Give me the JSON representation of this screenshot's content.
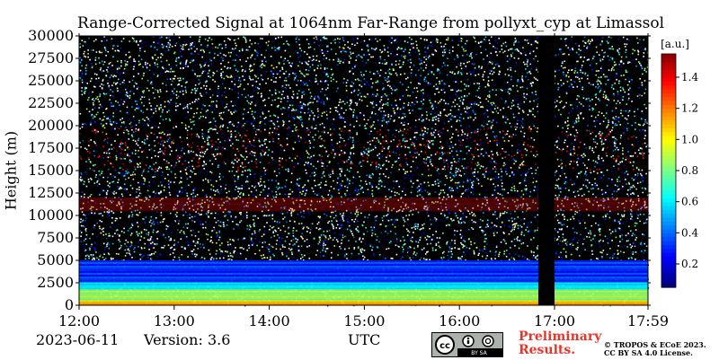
{
  "chart_data": {
    "type": "heatmap",
    "title": "Range-Corrected Signal at 1064nm Far-Range from pollyxt_cyp at Limassol",
    "xlabel": "UTC",
    "ylabel": "Height (m)",
    "x_ticks": [
      "12:00",
      "13:00",
      "14:00",
      "15:00",
      "16:00",
      "17:00",
      "17:59"
    ],
    "x_tick_hours": [
      12.0,
      13.0,
      14.0,
      15.0,
      16.0,
      17.0,
      17.983
    ],
    "xlim_hours": [
      12.0,
      17.983
    ],
    "y_ticks": [
      0,
      2500,
      5000,
      7500,
      10000,
      12500,
      15000,
      17500,
      20000,
      22500,
      25000,
      27500,
      30000
    ],
    "ylim": [
      0,
      30000
    ],
    "colorbar": {
      "unit": "[a.u.]",
      "ticks": [
        0.2,
        0.4,
        0.6,
        0.8,
        1.0,
        1.2,
        1.4
      ],
      "range": [
        0.05,
        1.55
      ],
      "colormap": "jet"
    },
    "no_data_interval_hours": [
      16.83,
      17.0
    ],
    "layers": [
      {
        "height_range_m": [
          0,
          600
        ],
        "signal": 1.1
      },
      {
        "height_range_m": [
          600,
          1800
        ],
        "signal": 0.85
      },
      {
        "height_range_m": [
          1800,
          2600
        ],
        "signal": 0.55
      },
      {
        "height_range_m": [
          2600,
          5000
        ],
        "signal": 0.3
      },
      {
        "height_range_m": [
          10500,
          12000
        ],
        "signal": 1.4
      }
    ]
  },
  "footer": {
    "date": "2023-06-11",
    "version": "Version: 3.6",
    "preliminary_line1": "Preliminary",
    "preliminary_line2": "Results.",
    "copyright_line1": "© TROPOS & ECoE 2023.",
    "copyright_line2": "CC BY SA 4.0 License.",
    "license_badge_text": "BY   SA"
  },
  "colors": {
    "noise_background": "#000000",
    "data_gap": "#000000",
    "preliminary_text": "#e8352a"
  }
}
